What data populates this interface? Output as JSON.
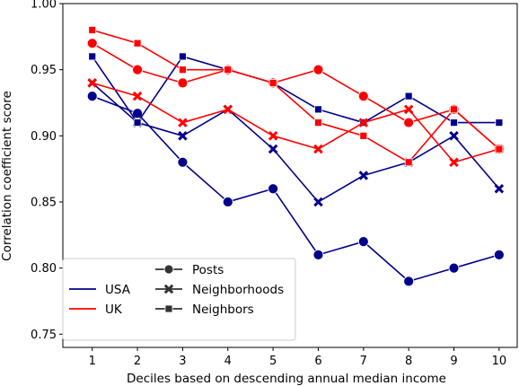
{
  "chart_data": {
    "type": "line",
    "title": "",
    "xlabel": "Deciles based on descending annual median income",
    "ylabel": "Correlation coefficient score",
    "x": [
      1,
      2,
      3,
      4,
      5,
      6,
      7,
      8,
      9,
      10
    ],
    "xlim": [
      0.35,
      10.4
    ],
    "ylim": [
      0.74,
      1.0
    ],
    "yticks": [
      "0.75",
      "0.80",
      "0.85",
      "0.90",
      "0.95",
      "1.00"
    ],
    "xticks": [
      "1",
      "2",
      "3",
      "4",
      "5",
      "6",
      "7",
      "8",
      "9",
      "10"
    ],
    "grid": false,
    "legend_position": "lower-left",
    "series": [
      {
        "country": "USA",
        "metric": "Posts",
        "color": "#00008b",
        "marker": "circle",
        "values": [
          0.93,
          0.917,
          0.88,
          0.85,
          0.86,
          0.81,
          0.82,
          0.79,
          0.8,
          0.81
        ]
      },
      {
        "country": "USA",
        "metric": "Neighborhoods",
        "color": "#00008b",
        "marker": "x",
        "values": [
          0.94,
          0.91,
          0.9,
          0.92,
          0.89,
          0.85,
          0.87,
          0.88,
          0.9,
          0.86
        ]
      },
      {
        "country": "USA",
        "metric": "Neighbors",
        "color": "#00008b",
        "marker": "square",
        "values": [
          0.96,
          0.91,
          0.96,
          0.95,
          0.94,
          0.92,
          0.91,
          0.93,
          0.91,
          0.91
        ]
      },
      {
        "country": "UK",
        "metric": "Posts",
        "color": "#ff0000",
        "marker": "circle",
        "values": [
          0.97,
          0.95,
          0.94,
          0.95,
          0.94,
          0.95,
          0.93,
          0.91,
          0.92,
          0.89
        ]
      },
      {
        "country": "UK",
        "metric": "Neighborhoods",
        "color": "#ff0000",
        "marker": "x",
        "values": [
          0.94,
          0.93,
          0.91,
          0.92,
          0.9,
          0.89,
          0.91,
          0.92,
          0.88,
          0.89
        ]
      },
      {
        "country": "UK",
        "metric": "Neighbors",
        "color": "#ff0000",
        "marker": "square",
        "values": [
          0.98,
          0.97,
          0.95,
          0.95,
          0.94,
          0.91,
          0.9,
          0.88,
          0.92,
          0.89
        ]
      }
    ],
    "legend": {
      "countries": [
        {
          "label": "USA",
          "color": "#00008b"
        },
        {
          "label": "UK",
          "color": "#ff0000"
        }
      ],
      "metrics": [
        {
          "label": "Posts",
          "marker": "circle"
        },
        {
          "label": "Neighborhoods",
          "marker": "x"
        },
        {
          "label": "Neighbors",
          "marker": "square"
        }
      ]
    }
  }
}
